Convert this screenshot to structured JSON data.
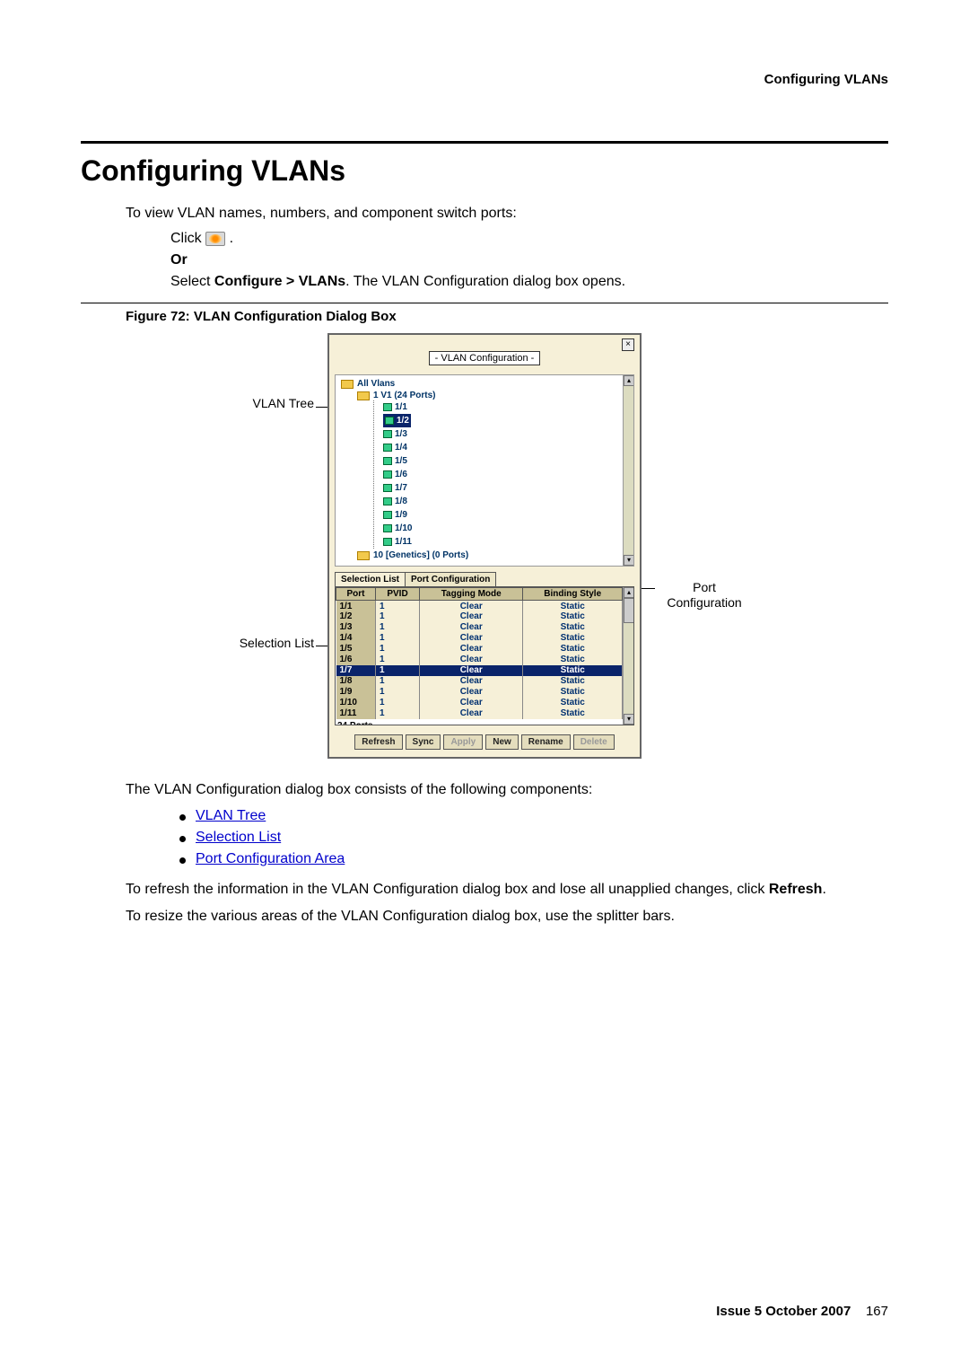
{
  "page": {
    "header_right": "Configuring VLANs",
    "title": "Configuring VLANs",
    "intro": "To view VLAN names, numbers, and component switch ports:",
    "click_prefix": "Click ",
    "click_suffix": ".",
    "or": "Or",
    "select_prefix": "Select ",
    "select_bold": "Configure > VLANs",
    "select_suffix": ". The VLAN Configuration dialog box opens.",
    "figure_caption": "Figure 72: VLAN Configuration Dialog Box",
    "components_intro": "The VLAN Configuration dialog box consists of the following components:",
    "links": [
      "VLAN Tree",
      "Selection List",
      "Port Configuration Area"
    ],
    "refresh_prefix": "To refresh the information in the VLAN Configuration dialog box and lose all unapplied changes, click ",
    "refresh_bold": "Refresh",
    "refresh_suffix": ".",
    "resize": "To resize the various areas of the VLAN Configuration dialog box, use the splitter bars.",
    "footer_issue": "Issue 5   October 2007",
    "footer_page": "167"
  },
  "labels": {
    "vlan_tree": "VLAN Tree",
    "selection_list": "Selection List",
    "port_config": "Port Configuration"
  },
  "dialog": {
    "title": "- VLAN Configuration -",
    "tree_root": "All Vlans",
    "tree_vlan1": "1    V1   (24 Ports)",
    "tree_ports": [
      "1/1",
      "1/2",
      "1/3",
      "1/4",
      "1/5",
      "1/6",
      "1/7",
      "1/8",
      "1/9",
      "1/10",
      "1/11"
    ],
    "tree_footer": "10    [Genetics]  (0 Ports)",
    "tabs": {
      "selection": "Selection List",
      "portcfg": "Port Configuration"
    },
    "table": {
      "columns": [
        "Port",
        "PVID",
        "Tagging Mode",
        "Binding Style"
      ],
      "rows": [
        [
          "1/1",
          "1",
          "Clear",
          "Static"
        ],
        [
          "1/2",
          "1",
          "Clear",
          "Static"
        ],
        [
          "1/3",
          "1",
          "Clear",
          "Static"
        ],
        [
          "1/4",
          "1",
          "Clear",
          "Static"
        ],
        [
          "1/5",
          "1",
          "Clear",
          "Static"
        ],
        [
          "1/6",
          "1",
          "Clear",
          "Static"
        ],
        [
          "1/7",
          "1",
          "Clear",
          "Static"
        ],
        [
          "1/8",
          "1",
          "Clear",
          "Static"
        ],
        [
          "1/9",
          "1",
          "Clear",
          "Static"
        ],
        [
          "1/10",
          "1",
          "Clear",
          "Static"
        ],
        [
          "1/11",
          "1",
          "Clear",
          "Static"
        ]
      ],
      "selected_row": 6,
      "row_count_label": "24 Ports"
    },
    "buttons": [
      "Refresh",
      "Sync",
      "Apply",
      "New",
      "Rename",
      "Delete"
    ],
    "buttons_disabled": [
      2,
      5
    ]
  },
  "colors": {
    "link": "#0000cc",
    "dialog_bg": "#f6f0d8",
    "header_bg": "#c9c197",
    "cell_text": "#003070",
    "sel_bg": "#0a246a"
  }
}
